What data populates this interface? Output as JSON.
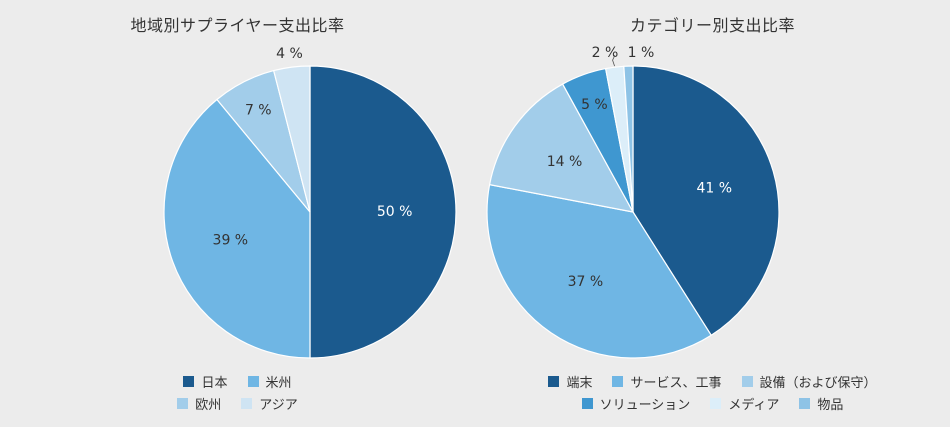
{
  "chart_data": [
    {
      "type": "pie",
      "title": "地域別サプライヤー支出比率",
      "unit": "%",
      "slices": [
        {
          "label": "日本",
          "value": 50,
          "color": "#1b5a8e"
        },
        {
          "label": "米州",
          "value": 39,
          "color": "#6fb6e4"
        },
        {
          "label": "欧州",
          "value": 7,
          "color": "#a2cdea"
        },
        {
          "label": "アジア",
          "value": 4,
          "color": "#cfe4f3"
        }
      ],
      "legend_placement": "bottom"
    },
    {
      "type": "pie",
      "title": "カテゴリー別支出比率",
      "unit": "%",
      "slices": [
        {
          "label": "端末",
          "value": 41,
          "color": "#1b5a8e"
        },
        {
          "label": "サービス、工事",
          "value": 37,
          "color": "#6fb6e4"
        },
        {
          "label": "設備（および保守）",
          "value": 14,
          "color": "#a2cdea"
        },
        {
          "label": "ソリューション",
          "value": 5,
          "color": "#3f97d0"
        },
        {
          "label": "メディア",
          "value": 2,
          "color": "#dceef9"
        },
        {
          "label": "物品",
          "value": 1,
          "color": "#8ec3e6"
        }
      ],
      "legend_placement": "bottom"
    }
  ]
}
